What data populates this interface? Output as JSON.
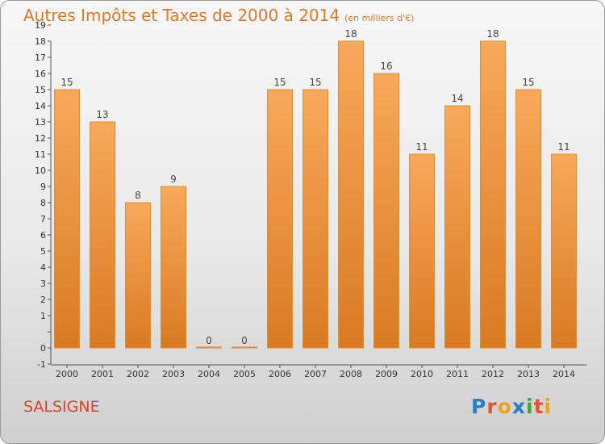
{
  "header": {
    "title": "Autres Impôts et Taxes de 2000 à 2014",
    "subtitle": "(en milliers d'€)"
  },
  "commune": "SALSIGNE",
  "logo": {
    "letters": [
      "P",
      "r",
      "o",
      "x",
      "i",
      "t",
      "i"
    ],
    "colors": [
      "#2a7fc4",
      "#e0552b",
      "#f0a020",
      "#2a7fc4",
      "#3aa83a",
      "#e0552b",
      "#f0a020"
    ]
  },
  "chart_data": {
    "type": "bar",
    "categories": [
      "2000",
      "2001",
      "2002",
      "2003",
      "2004",
      "2005",
      "2006",
      "2007",
      "2008",
      "2009",
      "2010",
      "2011",
      "2012",
      "2013",
      "2014"
    ],
    "values": [
      15,
      13,
      8,
      9,
      0,
      0,
      15,
      15,
      18,
      16,
      11,
      14,
      18,
      15,
      11
    ],
    "ylim": [
      -1,
      19
    ],
    "yticks": [
      "-1",
      "0",
      "",
      "1",
      "2",
      "3",
      "4",
      "5",
      "6",
      "7",
      "8",
      "9",
      "10",
      "11",
      "12",
      "13",
      "14",
      "15",
      "16",
      "17",
      "18",
      "19"
    ],
    "grid": false,
    "bar_color_top": "#f8a95a",
    "bar_color_bottom": "#d97a22",
    "bar_edge": "#e88a2a"
  }
}
